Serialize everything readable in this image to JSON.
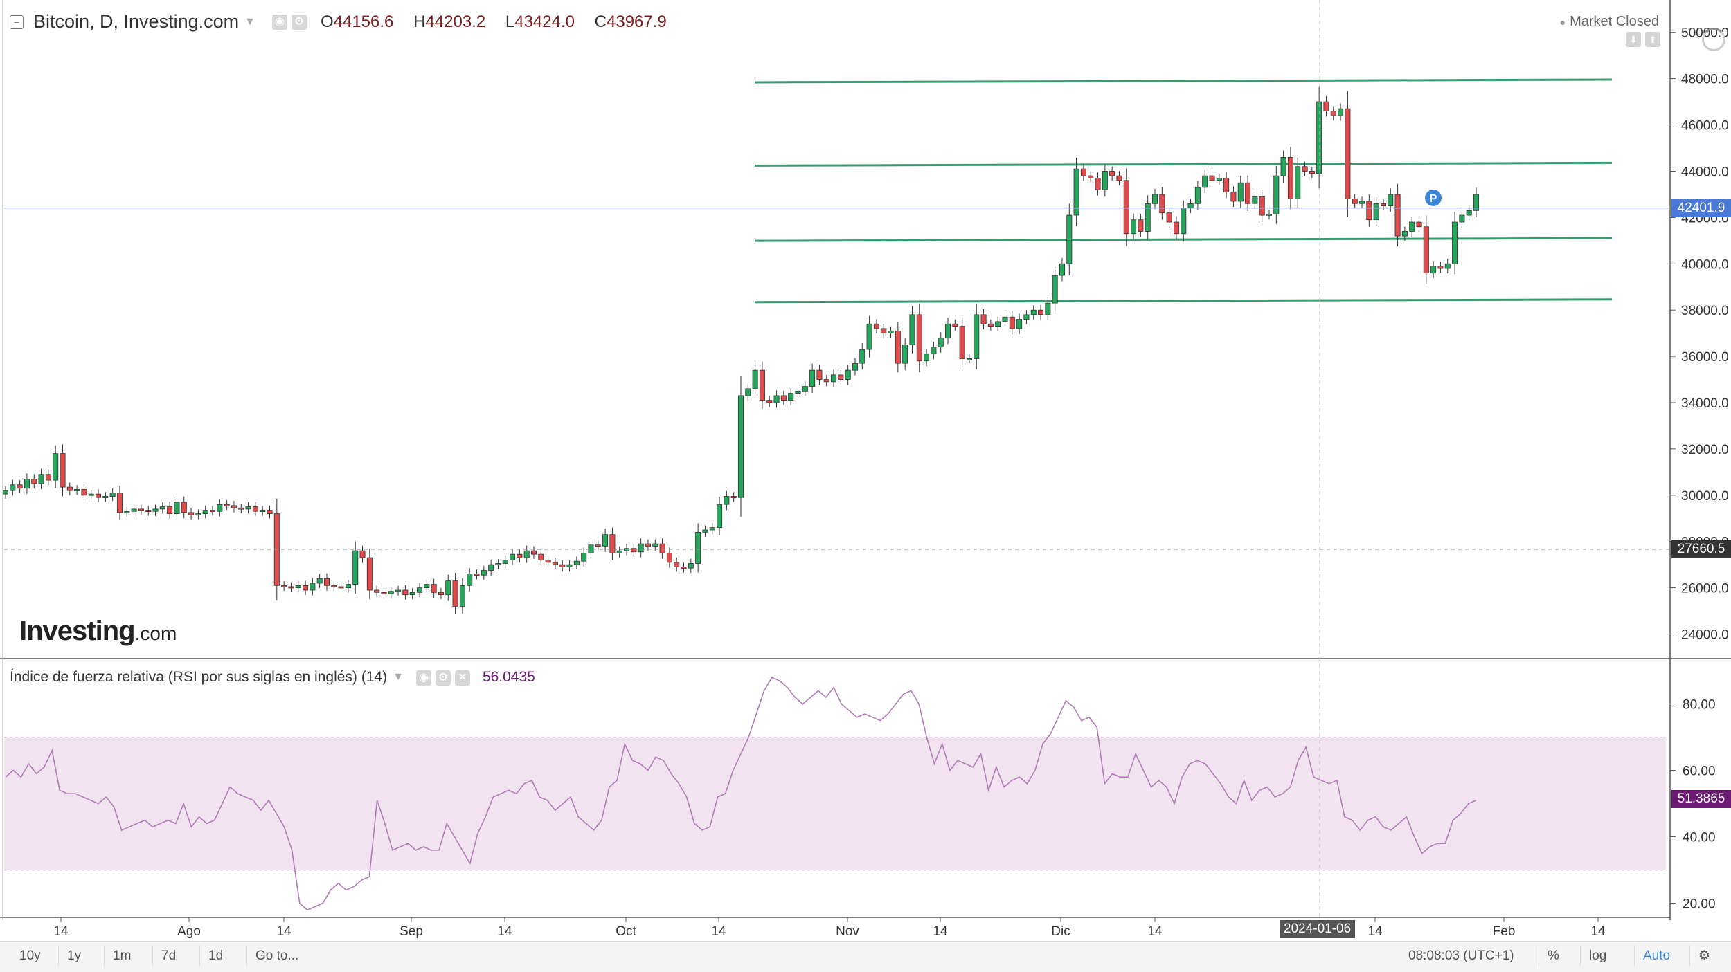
{
  "header": {
    "symbol_title": "Bitcoin, D, Investing.com",
    "ohlc": {
      "o_label": "O",
      "o": "44156.6",
      "h_label": "H",
      "h": "44203.2",
      "l_label": "L",
      "l": "43424.0",
      "c_label": "C",
      "c": "43967.9"
    },
    "market_status": "Market Closed"
  },
  "logo": {
    "main": "Investing",
    "suffix": ".com"
  },
  "price_tags": {
    "current": "42401.9",
    "dashed": "27660.5"
  },
  "rsi": {
    "title": "Índice de fuerza relativa (RSI por sus siglas en inglés) (14)",
    "value": "56.0435",
    "axis_value": "51.3865"
  },
  "crosshair_date": "2024-01-06",
  "toolbar": {
    "ranges": [
      "10y",
      "1y",
      "1m",
      "7d",
      "1d"
    ],
    "goto": "Go to...",
    "time": "08:08:03 (UTC+1)",
    "percent": "%",
    "log": "log",
    "auto": "Auto"
  },
  "colors": {
    "up": "#26a65b",
    "down": "#e04b4b",
    "level_lines": "#3a9a6e",
    "rsi_band": "#f1e3f0",
    "rsi_line": "#b07bb6",
    "price_tag": "#4a78d6",
    "rsi_tag": "#6b1b74"
  },
  "chart_data": [
    {
      "type": "candlestick",
      "title": "Bitcoin, D, Investing.com",
      "ylim": [
        23000,
        50500
      ],
      "yticks": [
        24000,
        26000,
        28000,
        30000,
        32000,
        34000,
        36000,
        38000,
        40000,
        42000,
        44000,
        46000,
        48000,
        50000
      ],
      "ytick_labels": [
        "24000.0",
        "26000.0",
        "28000.0",
        "30000.0",
        "32000.0",
        "34000.0",
        "36000.0",
        "38000.0",
        "40000.0",
        "42000.0",
        "44000.0",
        "46000.0",
        "48000.0",
        "50000.0"
      ],
      "xtick_labels": [
        "14",
        "Ago",
        "14",
        "Sep",
        "14",
        "Oct",
        "14",
        "Nov",
        "14",
        "Dic",
        "14",
        "2024-01-06",
        "14",
        "Feb",
        "14"
      ],
      "horizontal_levels": [
        47900,
        44300,
        41050,
        38400
      ],
      "current_price": 42401.9,
      "dashed_level": 27660.5,
      "closes": [
        30200,
        30450,
        30300,
        30700,
        30500,
        30900,
        30650,
        31800,
        30350,
        30200,
        30250,
        30000,
        30050,
        29900,
        29950,
        30100,
        29250,
        29300,
        29400,
        29350,
        29300,
        29400,
        29500,
        29200,
        29700,
        29250,
        29150,
        29200,
        29350,
        29300,
        29600,
        29550,
        29450,
        29400,
        29500,
        29300,
        29350,
        29200,
        26100,
        26050,
        26000,
        26100,
        25900,
        26200,
        26400,
        26100,
        26050,
        26000,
        26150,
        27600,
        27300,
        25900,
        25800,
        25750,
        25850,
        25900,
        25700,
        25800,
        26000,
        26150,
        25800,
        25700,
        26300,
        25200,
        26100,
        26600,
        26550,
        26750,
        27000,
        27050,
        27200,
        27450,
        27300,
        27600,
        27450,
        27200,
        27100,
        27000,
        26900,
        27000,
        27150,
        27500,
        27850,
        27800,
        28300,
        27500,
        27600,
        27700,
        27550,
        27900,
        27800,
        27900,
        27500,
        27100,
        26900,
        26850,
        27050,
        28400,
        28500,
        28600,
        29600,
        29950,
        29900,
        34300,
        34600,
        35400,
        34100,
        34000,
        34300,
        34100,
        34400,
        34500,
        34700,
        35400,
        35000,
        34900,
        35200,
        35000,
        35400,
        35700,
        36300,
        37400,
        37200,
        37000,
        37100,
        35700,
        36500,
        37800,
        35800,
        36100,
        36400,
        36800,
        37400,
        37300,
        35900,
        35900,
        37800,
        37400,
        37300,
        37500,
        37700,
        37200,
        37600,
        37800,
        38000,
        37800,
        38300,
        39500,
        40000,
        42100,
        44100,
        43800,
        43700,
        43200,
        44000,
        43800,
        43600,
        41300,
        41900,
        41400,
        42600,
        43000,
        42200,
        41800,
        41300,
        42400,
        42600,
        43300,
        43800,
        43600,
        43700,
        43100,
        42700,
        43500,
        42600,
        42900,
        42100,
        42150,
        43800,
        44600,
        42800,
        44200,
        44000,
        43900,
        47000,
        46600,
        46400,
        46700,
        42800,
        42600,
        42700,
        41900,
        42600,
        42500,
        43000,
        41200,
        41400,
        41800,
        41600,
        39600,
        39900,
        39800,
        40000,
        41800,
        42100,
        42300,
        43000
      ]
    },
    {
      "type": "line",
      "title": "Índice de fuerza relativa (RSI por sus siglas en inglés) (14)",
      "ylim": [
        17,
        92
      ],
      "yticks": [
        20,
        40,
        60,
        80
      ],
      "ytick_labels": [
        "20.00",
        "40.00",
        "60.00",
        "80.00"
      ],
      "band": [
        30,
        70
      ],
      "last_value": 51.3865,
      "values": [
        58,
        60,
        58,
        62,
        59,
        61,
        66,
        54,
        53,
        53,
        52,
        51,
        50,
        52,
        49,
        42,
        43,
        44,
        45,
        43,
        44,
        45,
        44,
        50,
        43,
        46,
        44,
        45,
        50,
        55,
        53,
        52,
        51,
        48,
        51,
        47,
        43,
        36,
        20,
        18,
        19,
        20,
        24,
        26,
        24,
        25,
        27,
        28,
        51,
        44,
        36,
        37,
        38,
        36,
        37,
        36,
        36,
        44,
        40,
        36,
        32,
        41,
        46,
        52,
        53,
        54,
        53,
        56,
        57,
        52,
        51,
        48,
        50,
        52,
        46,
        44,
        42,
        45,
        55,
        57,
        68,
        63,
        62,
        60,
        64,
        63,
        59,
        56,
        52,
        44,
        42,
        43,
        52,
        53,
        60,
        65,
        70,
        77,
        84,
        88,
        87,
        85,
        82,
        80,
        82,
        84,
        82,
        85,
        80,
        78,
        76,
        77,
        76,
        75,
        77,
        80,
        83,
        84,
        80,
        70,
        62,
        68,
        60,
        63,
        62,
        61,
        65,
        54,
        61,
        55,
        57,
        58,
        56,
        60,
        68,
        71,
        76,
        81,
        79,
        75,
        76,
        73,
        56,
        59,
        58,
        58,
        65,
        60,
        55,
        57,
        55,
        50,
        58,
        62,
        63,
        62,
        59,
        56,
        52,
        50,
        57,
        51,
        54,
        55,
        52,
        53,
        55,
        63,
        67,
        58,
        57,
        56,
        57,
        46,
        45,
        42,
        45,
        46,
        43,
        42,
        44,
        46,
        40,
        35,
        37,
        38,
        38,
        45,
        47,
        50,
        51
      ]
    }
  ]
}
